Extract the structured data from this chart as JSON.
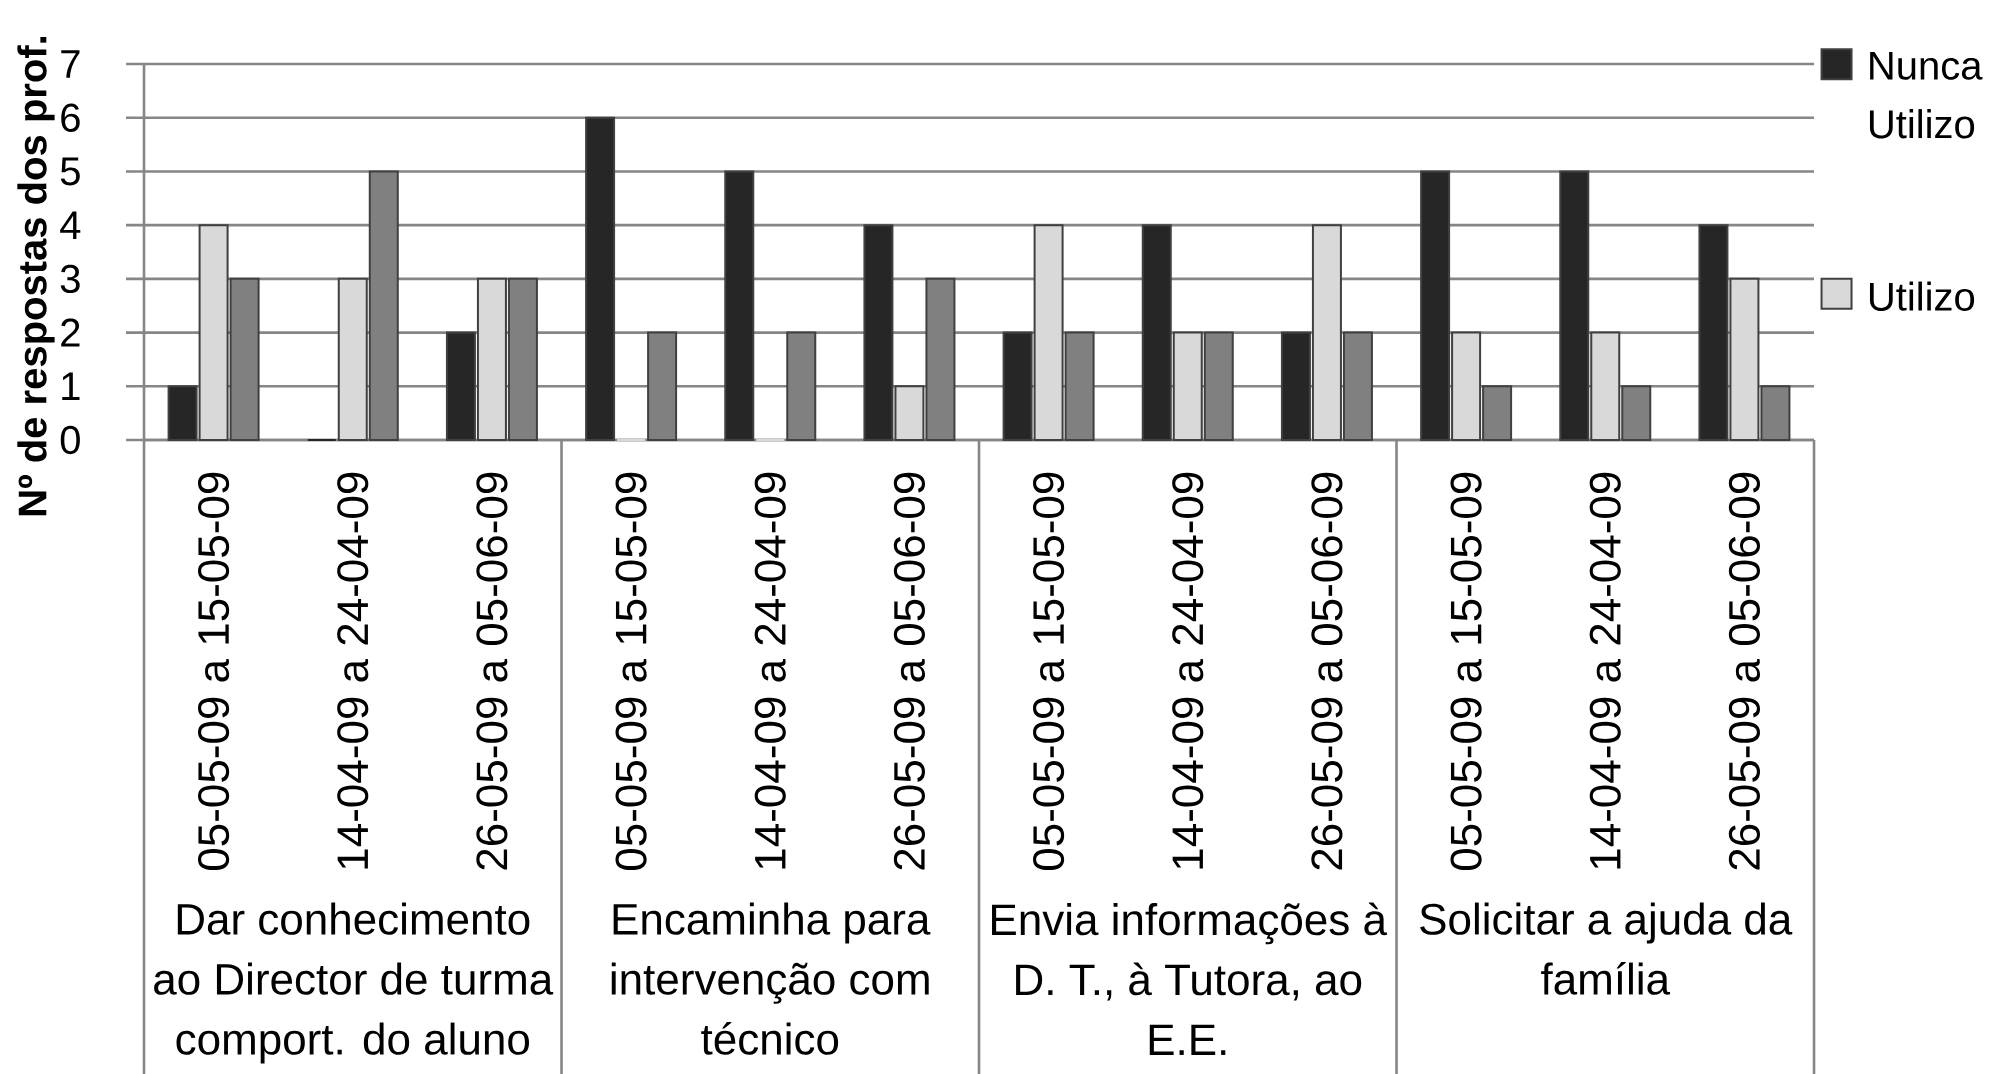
{
  "chart_data": {
    "type": "bar",
    "ylabel": "Nº de respostas dos prof.",
    "categories": [
      "05-05-09 a 15-05-09",
      "14-04-09 a 24-04-09",
      "26-05-09 a 05-06-09",
      "05-05-09 a 15-05-09",
      "14-04-09 a 24-04-09",
      "26-05-09 a 05-06-09",
      "05-05-09 a 15-05-09",
      "14-04-09 a 24-04-09",
      "26-05-09 a 05-06-09",
      "05-05-09 a 15-05-09",
      "14-04-09 a 24-04-09",
      "26-05-09 a 05-06-09"
    ],
    "series": [
      {
        "name": "Nunca Utilizo",
        "color": "#262626",
        "values": [
          1,
          0,
          2,
          6,
          5,
          4,
          2,
          4,
          2,
          5,
          5,
          4
        ]
      },
      {
        "name": "Utilizo",
        "color": "#d9d9d9",
        "values": [
          4,
          3,
          3,
          0,
          0,
          1,
          4,
          2,
          4,
          2,
          2,
          3
        ]
      },
      {
        "color": "#808080",
        "values": [
          3,
          5,
          3,
          2,
          2,
          3,
          2,
          2,
          2,
          1,
          1,
          1
        ]
      }
    ],
    "ylim": [
      0,
      7
    ],
    "yticks": [
      0,
      1,
      2,
      3,
      4,
      5,
      6,
      7
    ],
    "grid": "y",
    "legend": "right",
    "annotations": [
      "Dar conhecimento ao Director de turma comport. do aluno",
      "Encaminha para intervenção com técnico",
      "Envia informações à D. T., à Tutora, ao E.E.",
      "Solicitar a ajuda da família"
    ]
  }
}
